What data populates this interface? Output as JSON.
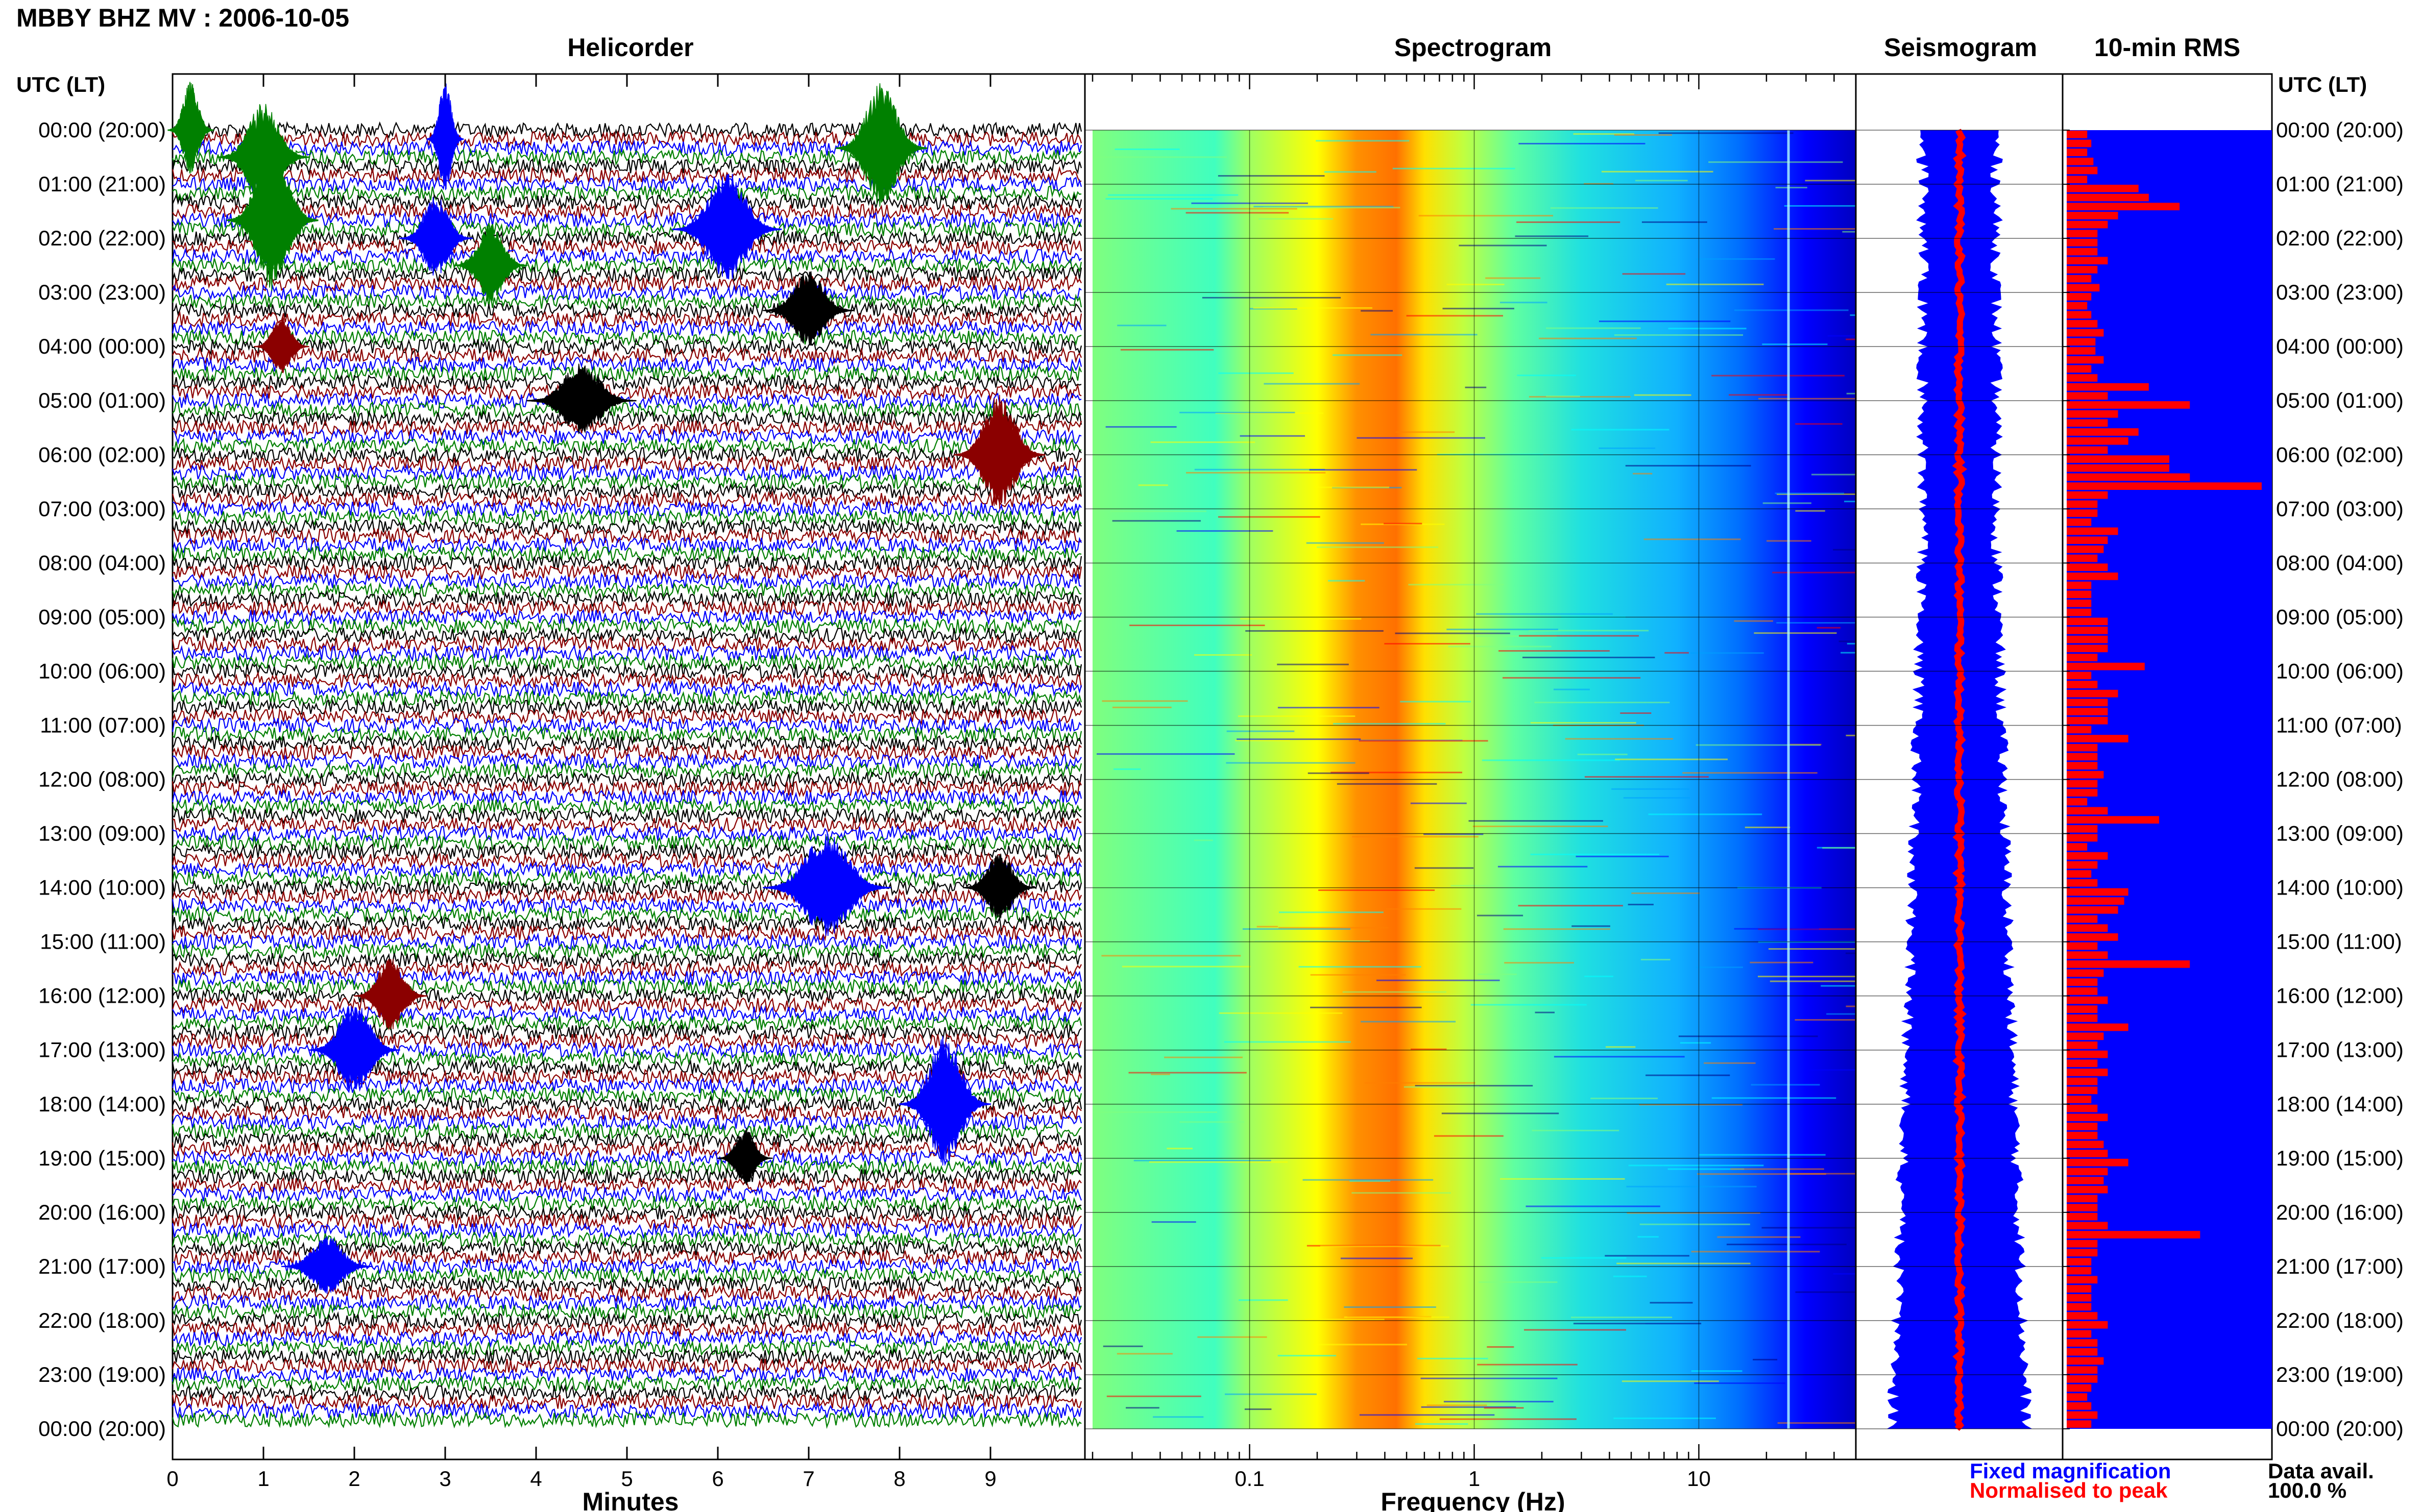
{
  "header": {
    "station_title": "MBBY BHZ MV : 2006-10-05"
  },
  "panel_titles": {
    "helicorder": "Helicorder",
    "spectrogram": "Spectrogram",
    "seismogram": "Seismogram",
    "rms": "10-min RMS"
  },
  "axis_titles": {
    "time_left": "UTC (LT)",
    "time_right": "UTC (LT)",
    "helicorder_x": "Minutes",
    "spectrogram_x": "Frequency (Hz)"
  },
  "legend": {
    "fixed": "Fixed magnification",
    "fixed_color": "#0000ff",
    "normalised": "Normalised to peak",
    "normalised_color": "#ff0000"
  },
  "data_avail": {
    "label": "Data avail.",
    "value": "100.0 %"
  },
  "chart_data": [
    {
      "type": "line",
      "name": "helicorder",
      "xlabel": "Minutes",
      "xlim": [
        0,
        10
      ],
      "x_ticks": [
        "0",
        "1",
        "2",
        "3",
        "4",
        "5",
        "6",
        "7",
        "8",
        "9"
      ],
      "ylabel": "UTC (LT)",
      "y_ticks": [
        "00:00 (20:00)",
        "01:00 (21:00)",
        "02:00 (22:00)",
        "03:00 (23:00)",
        "04:00 (00:00)",
        "05:00 (01:00)",
        "06:00 (02:00)",
        "07:00 (03:00)",
        "08:00 (04:00)",
        "09:00 (05:00)",
        "10:00 (06:00)",
        "11:00 (07:00)",
        "12:00 (08:00)",
        "13:00 (09:00)",
        "14:00 (10:00)",
        "15:00 (11:00)",
        "16:00 (12:00)",
        "17:00 (13:00)",
        "18:00 (14:00)",
        "19:00 (15:00)",
        "20:00 (16:00)",
        "21:00 (17:00)",
        "22:00 (18:00)",
        "23:00 (19:00)",
        "00:00 (20:00)"
      ],
      "trace_colors": [
        "#000000",
        "#8b0000",
        "#0000ff",
        "#008000"
      ],
      "traces_per_hour": 6,
      "events": [
        {
          "trace": 0,
          "minute": 0.2,
          "amp": 1.6,
          "width": 0.25,
          "color": "#008000"
        },
        {
          "trace": 1,
          "minute": 3.0,
          "amp": 1.9,
          "width": 0.2,
          "color": "#0000ff"
        },
        {
          "trace": 2,
          "minute": 7.8,
          "amp": 2.2,
          "width": 0.5,
          "color": "#008000"
        },
        {
          "trace": 3,
          "minute": 1.0,
          "amp": 1.8,
          "width": 0.5,
          "color": "#008000"
        },
        {
          "trace": 10,
          "minute": 1.1,
          "amp": 2.6,
          "width": 0.5,
          "color": "#008000"
        },
        {
          "trace": 11,
          "minute": 6.1,
          "amp": 2.0,
          "width": 0.6,
          "color": "#0000ff"
        },
        {
          "trace": 12,
          "minute": 2.9,
          "amp": 1.4,
          "width": 0.4,
          "color": "#0000ff"
        },
        {
          "trace": 15,
          "minute": 3.5,
          "amp": 1.4,
          "width": 0.4,
          "color": "#008000"
        },
        {
          "trace": 20,
          "minute": 7.0,
          "amp": 1.3,
          "width": 0.5,
          "color": "#000000"
        },
        {
          "trace": 24,
          "minute": 1.2,
          "amp": 1.0,
          "width": 0.3,
          "color": "#8b0000"
        },
        {
          "trace": 30,
          "minute": 4.5,
          "amp": 1.3,
          "width": 0.6,
          "color": "#000000"
        },
        {
          "trace": 36,
          "minute": 9.1,
          "amp": 2.0,
          "width": 0.5,
          "color": "#8b0000"
        },
        {
          "trace": 84,
          "minute": 7.2,
          "amp": 1.8,
          "width": 0.7,
          "color": "#0000ff"
        },
        {
          "trace": 84,
          "minute": 9.1,
          "amp": 1.2,
          "width": 0.4,
          "color": "#000000"
        },
        {
          "trace": 96,
          "minute": 2.4,
          "amp": 1.3,
          "width": 0.4,
          "color": "#8b0000"
        },
        {
          "trace": 102,
          "minute": 2.0,
          "amp": 1.6,
          "width": 0.5,
          "color": "#0000ff"
        },
        {
          "trace": 108,
          "minute": 8.5,
          "amp": 2.3,
          "width": 0.5,
          "color": "#0000ff"
        },
        {
          "trace": 114,
          "minute": 6.3,
          "amp": 1.0,
          "width": 0.3,
          "color": "#000000"
        },
        {
          "trace": 126,
          "minute": 1.7,
          "amp": 1.0,
          "width": 0.5,
          "color": "#0000ff"
        }
      ]
    },
    {
      "type": "heatmap",
      "name": "spectrogram",
      "xlabel": "Frequency (Hz)",
      "x_scale": "log",
      "xlim": [
        0.02,
        50
      ],
      "x_ticks": [
        "0.1",
        "1",
        "10"
      ],
      "colormap": [
        "#00007f",
        "#0000ff",
        "#00a0ff",
        "#00ffff",
        "#7fff7f",
        "#ffff00",
        "#ff7f00",
        "#ff0000"
      ],
      "peak_band_hz": [
        0.25,
        0.5
      ],
      "spectral_line_hz": 25
    },
    {
      "type": "line",
      "name": "seismogram",
      "series": [
        {
          "name": "Fixed magnification",
          "color": "#0000ff"
        },
        {
          "name": "Normalised to peak",
          "color": "#ff0000"
        }
      ]
    },
    {
      "type": "bar",
      "name": "10-min RMS",
      "orientation": "horizontal",
      "background_color": "#0000ff",
      "bar_color": "#ff0000",
      "values": [
        0.1,
        0.12,
        0.1,
        0.13,
        0.15,
        0.1,
        0.35,
        0.4,
        0.55,
        0.25,
        0.2,
        0.15,
        0.15,
        0.15,
        0.2,
        0.15,
        0.12,
        0.16,
        0.12,
        0.1,
        0.12,
        0.15,
        0.18,
        0.14,
        0.14,
        0.18,
        0.12,
        0.15,
        0.4,
        0.2,
        0.6,
        0.25,
        0.2,
        0.35,
        0.3,
        0.2,
        0.5,
        0.5,
        0.6,
        0.95,
        0.2,
        0.15,
        0.15,
        0.12,
        0.25,
        0.2,
        0.18,
        0.15,
        0.2,
        0.25,
        0.12,
        0.12,
        0.12,
        0.12,
        0.2,
        0.2,
        0.2,
        0.2,
        0.15,
        0.38,
        0.12,
        0.15,
        0.25,
        0.2,
        0.2,
        0.2,
        0.12,
        0.3,
        0.15,
        0.15,
        0.15,
        0.18,
        0.15,
        0.15,
        0.1,
        0.2,
        0.45,
        0.15,
        0.15,
        0.1,
        0.2,
        0.15,
        0.12,
        0.15,
        0.3,
        0.28,
        0.25,
        0.15,
        0.2,
        0.25,
        0.15,
        0.2,
        0.6,
        0.18,
        0.15,
        0.15,
        0.2,
        0.15,
        0.15,
        0.3,
        0.18,
        0.15,
        0.2,
        0.15,
        0.2,
        0.15,
        0.15,
        0.12,
        0.15,
        0.2,
        0.15,
        0.15,
        0.18,
        0.2,
        0.3,
        0.2,
        0.18,
        0.2,
        0.15,
        0.15,
        0.15,
        0.2,
        0.65,
        0.15,
        0.15,
        0.12,
        0.12,
        0.15,
        0.12,
        0.12,
        0.12,
        0.15,
        0.2,
        0.12,
        0.15,
        0.15,
        0.18,
        0.15,
        0.15,
        0.12,
        0.1,
        0.12,
        0.15,
        0.12
      ]
    }
  ]
}
